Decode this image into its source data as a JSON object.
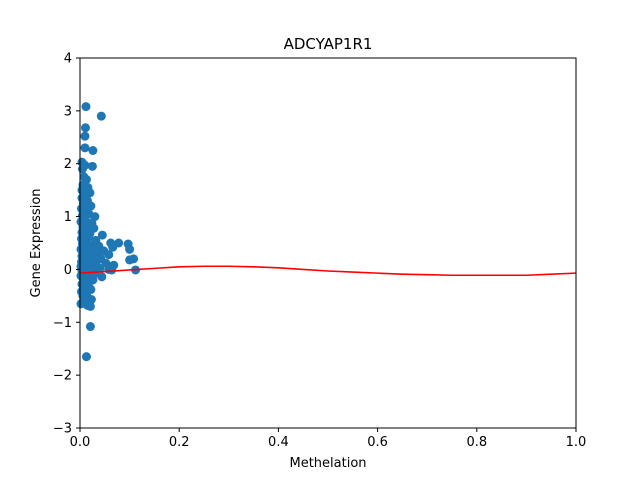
{
  "chart_data": {
    "type": "scatter",
    "title": "ADCYAP1R1",
    "xlabel": "Methelation",
    "ylabel": "Gene Expression",
    "xlim": [
      0.0,
      1.0
    ],
    "ylim": [
      -3,
      4
    ],
    "grid": false,
    "legend": "none",
    "x_ticks": [
      {
        "value": 0.0,
        "label": "0.0"
      },
      {
        "value": 0.2,
        "label": "0.2"
      },
      {
        "value": 0.4,
        "label": "0.4"
      },
      {
        "value": 0.6,
        "label": "0.6"
      },
      {
        "value": 0.8,
        "label": "0.8"
      },
      {
        "value": 1.0,
        "label": "1.0"
      }
    ],
    "y_ticks": [
      {
        "value": -3,
        "label": "−3"
      },
      {
        "value": -2,
        "label": "−2"
      },
      {
        "value": -1,
        "label": "−1"
      },
      {
        "value": 0,
        "label": "0"
      },
      {
        "value": 1,
        "label": "1"
      },
      {
        "value": 2,
        "label": "2"
      },
      {
        "value": 3,
        "label": "3"
      },
      {
        "value": 4,
        "label": "4"
      }
    ],
    "series": [
      {
        "kind": "scatter",
        "color": "#1f77b4",
        "points": [
          {
            "x": 0.012,
            "y": 3.08
          },
          {
            "x": 0.043,
            "y": 2.9
          },
          {
            "x": 0.011,
            "y": 2.68
          },
          {
            "x": 0.01,
            "y": 2.52
          },
          {
            "x": 0.01,
            "y": 2.3
          },
          {
            "x": 0.026,
            "y": 2.25
          },
          {
            "x": 0.004,
            "y": 2.03
          },
          {
            "x": 0.01,
            "y": 1.97
          },
          {
            "x": 0.025,
            "y": 1.95
          },
          {
            "x": 0.005,
            "y": 1.9
          },
          {
            "x": 0.008,
            "y": 1.75
          },
          {
            "x": 0.013,
            "y": 1.7
          },
          {
            "x": 0.006,
            "y": 1.6
          },
          {
            "x": 0.016,
            "y": 1.55
          },
          {
            "x": 0.004,
            "y": 1.5
          },
          {
            "x": 0.02,
            "y": 1.45
          },
          {
            "x": 0.009,
            "y": 1.4
          },
          {
            "x": 0.004,
            "y": 1.35
          },
          {
            "x": 0.015,
            "y": 1.3
          },
          {
            "x": 0.007,
            "y": 1.25
          },
          {
            "x": 0.022,
            "y": 1.2
          },
          {
            "x": 0.003,
            "y": 1.15
          },
          {
            "x": 0.012,
            "y": 1.1
          },
          {
            "x": 0.018,
            "y": 1.05
          },
          {
            "x": 0.005,
            "y": 1.02
          },
          {
            "x": 0.03,
            "y": 1.0
          },
          {
            "x": 0.01,
            "y": 0.95
          },
          {
            "x": 0.002,
            "y": 0.9
          },
          {
            "x": 0.024,
            "y": 0.88
          },
          {
            "x": 0.014,
            "y": 0.85
          },
          {
            "x": 0.006,
            "y": 0.8
          },
          {
            "x": 0.028,
            "y": 0.78
          },
          {
            "x": 0.011,
            "y": 0.75
          },
          {
            "x": 0.004,
            "y": 0.7
          },
          {
            "x": 0.02,
            "y": 0.68
          },
          {
            "x": 0.045,
            "y": 0.65
          },
          {
            "x": 0.008,
            "y": 0.62
          },
          {
            "x": 0.016,
            "y": 0.6
          },
          {
            "x": 0.003,
            "y": 0.58
          },
          {
            "x": 0.032,
            "y": 0.55
          },
          {
            "x": 0.012,
            "y": 0.52
          },
          {
            "x": 0.062,
            "y": 0.5
          },
          {
            "x": 0.078,
            "y": 0.5
          },
          {
            "x": 0.097,
            "y": 0.48
          },
          {
            "x": 0.005,
            "y": 0.48
          },
          {
            "x": 0.022,
            "y": 0.45
          },
          {
            "x": 0.038,
            "y": 0.44
          },
          {
            "x": 0.009,
            "y": 0.42
          },
          {
            "x": 0.015,
            "y": 0.4
          },
          {
            "x": 0.066,
            "y": 0.42
          },
          {
            "x": 0.1,
            "y": 0.38
          },
          {
            "x": 0.002,
            "y": 0.38
          },
          {
            "x": 0.028,
            "y": 0.36
          },
          {
            "x": 0.048,
            "y": 0.35
          },
          {
            "x": 0.011,
            "y": 0.33
          },
          {
            "x": 0.006,
            "y": 0.3
          },
          {
            "x": 0.035,
            "y": 0.3
          },
          {
            "x": 0.018,
            "y": 0.28
          },
          {
            "x": 0.058,
            "y": 0.28
          },
          {
            "x": 0.004,
            "y": 0.25
          },
          {
            "x": 0.025,
            "y": 0.24
          },
          {
            "x": 0.013,
            "y": 0.22
          },
          {
            "x": 0.042,
            "y": 0.2
          },
          {
            "x": 0.108,
            "y": 0.2
          },
          {
            "x": 0.1,
            "y": 0.18
          },
          {
            "x": 0.007,
            "y": 0.18
          },
          {
            "x": 0.02,
            "y": 0.16
          },
          {
            "x": 0.003,
            "y": 0.14
          },
          {
            "x": 0.032,
            "y": 0.12
          },
          {
            "x": 0.052,
            "y": 0.12
          },
          {
            "x": 0.01,
            "y": 0.1
          },
          {
            "x": 0.016,
            "y": 0.08
          },
          {
            "x": 0.068,
            "y": 0.08
          },
          {
            "x": 0.002,
            "y": 0.06
          },
          {
            "x": 0.026,
            "y": 0.05
          },
          {
            "x": 0.006,
            "y": 0.03
          },
          {
            "x": 0.04,
            "y": 0.02
          },
          {
            "x": 0.012,
            "y": 0.0
          },
          {
            "x": 0.058,
            "y": 0.0
          },
          {
            "x": 0.112,
            "y": -0.01
          },
          {
            "x": 0.064,
            "y": -0.01
          },
          {
            "x": 0.004,
            "y": -0.03
          },
          {
            "x": 0.022,
            "y": -0.04
          },
          {
            "x": 0.009,
            "y": -0.06
          },
          {
            "x": 0.03,
            "y": -0.08
          },
          {
            "x": 0.014,
            "y": -0.1
          },
          {
            "x": 0.044,
            "y": -0.14
          },
          {
            "x": 0.002,
            "y": -0.12
          },
          {
            "x": 0.019,
            "y": -0.15
          },
          {
            "x": 0.007,
            "y": -0.18
          },
          {
            "x": 0.026,
            "y": -0.2
          },
          {
            "x": 0.011,
            "y": -0.24
          },
          {
            "x": 0.004,
            "y": -0.28
          },
          {
            "x": 0.017,
            "y": -0.3
          },
          {
            "x": 0.008,
            "y": -0.35
          },
          {
            "x": 0.022,
            "y": -0.38
          },
          {
            "x": 0.003,
            "y": -0.42
          },
          {
            "x": 0.013,
            "y": -0.46
          },
          {
            "x": 0.006,
            "y": -0.5
          },
          {
            "x": 0.018,
            "y": -0.55
          },
          {
            "x": 0.023,
            "y": -0.57
          },
          {
            "x": 0.01,
            "y": -0.6
          },
          {
            "x": 0.002,
            "y": -0.65
          },
          {
            "x": 0.015,
            "y": -0.68
          },
          {
            "x": 0.021,
            "y": -0.7
          },
          {
            "x": 0.021,
            "y": -1.08
          },
          {
            "x": 0.013,
            "y": -1.65
          }
        ]
      },
      {
        "kind": "line",
        "color": "#ff0000",
        "points": [
          {
            "x": 0.0,
            "y": -0.07
          },
          {
            "x": 0.05,
            "y": -0.04
          },
          {
            "x": 0.1,
            "y": -0.01
          },
          {
            "x": 0.15,
            "y": 0.02
          },
          {
            "x": 0.2,
            "y": 0.05
          },
          {
            "x": 0.25,
            "y": 0.06
          },
          {
            "x": 0.3,
            "y": 0.06
          },
          {
            "x": 0.35,
            "y": 0.05
          },
          {
            "x": 0.4,
            "y": 0.03
          },
          {
            "x": 0.45,
            "y": 0.0
          },
          {
            "x": 0.5,
            "y": -0.03
          },
          {
            "x": 0.55,
            "y": -0.05
          },
          {
            "x": 0.6,
            "y": -0.07
          },
          {
            "x": 0.65,
            "y": -0.09
          },
          {
            "x": 0.7,
            "y": -0.1
          },
          {
            "x": 0.75,
            "y": -0.11
          },
          {
            "x": 0.8,
            "y": -0.11
          },
          {
            "x": 0.85,
            "y": -0.11
          },
          {
            "x": 0.9,
            "y": -0.11
          },
          {
            "x": 0.95,
            "y": -0.09
          },
          {
            "x": 1.0,
            "y": -0.07
          }
        ]
      }
    ]
  }
}
